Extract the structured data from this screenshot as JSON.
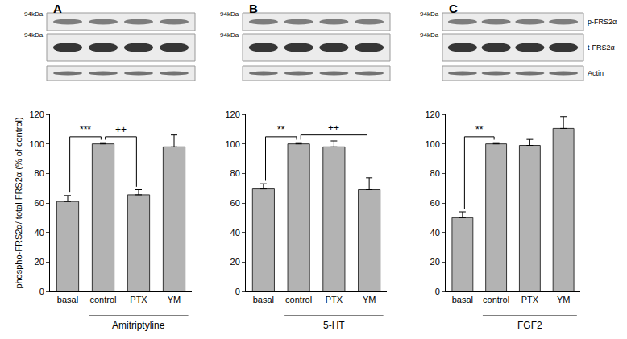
{
  "blots": {
    "marker_label": "94kDa",
    "rows": [
      "p-FRS2α",
      "t-FRS2α",
      "Actin"
    ]
  },
  "chart_data": [
    {
      "panel": "A",
      "type": "bar",
      "y_label": "phospho-FRS2α/ total FRS2α (% of control)",
      "categories": [
        "basal",
        "control",
        "PTX",
        "YM"
      ],
      "values": [
        61,
        100,
        65.5,
        98
      ],
      "errors": [
        4,
        0.8,
        3.5,
        8
      ],
      "color": "#b3b3b3",
      "ylim": [
        0,
        120
      ],
      "yticks": [
        0,
        20,
        40,
        60,
        80,
        100,
        120
      ],
      "grid": false,
      "group_label": "Amitriptyline",
      "group_categories": [
        "control",
        "PTX",
        "YM"
      ],
      "significance": [
        {
          "from": "basal",
          "to": "control",
          "label": "***"
        },
        {
          "from": "control",
          "to": "PTX",
          "label": "++"
        }
      ]
    },
    {
      "panel": "B",
      "type": "bar",
      "categories": [
        "basal",
        "control",
        "PTX",
        "YM"
      ],
      "values": [
        69.5,
        100,
        98,
        69
      ],
      "errors": [
        3.5,
        0.8,
        4,
        8
      ],
      "color": "#b3b3b3",
      "ylim": [
        0,
        120
      ],
      "yticks": [
        0,
        20,
        40,
        60,
        80,
        100,
        120
      ],
      "grid": false,
      "group_label": "5-HT",
      "group_categories": [
        "control",
        "PTX",
        "YM"
      ],
      "significance": [
        {
          "from": "basal",
          "to": "control",
          "label": "**"
        },
        {
          "from": "control",
          "to": "YM",
          "label": "++"
        }
      ]
    },
    {
      "panel": "C",
      "type": "bar",
      "categories": [
        "basal",
        "control",
        "PTX",
        "YM"
      ],
      "values": [
        50,
        100,
        99,
        110.5
      ],
      "errors": [
        4,
        0.8,
        4,
        8
      ],
      "color": "#b3b3b3",
      "ylim": [
        0,
        120
      ],
      "yticks": [
        0,
        20,
        40,
        60,
        80,
        100,
        120
      ],
      "grid": false,
      "group_label": "FGF2",
      "group_categories": [
        "control",
        "PTX",
        "YM"
      ],
      "significance": [
        {
          "from": "basal",
          "to": "control",
          "label": "**"
        }
      ]
    }
  ]
}
